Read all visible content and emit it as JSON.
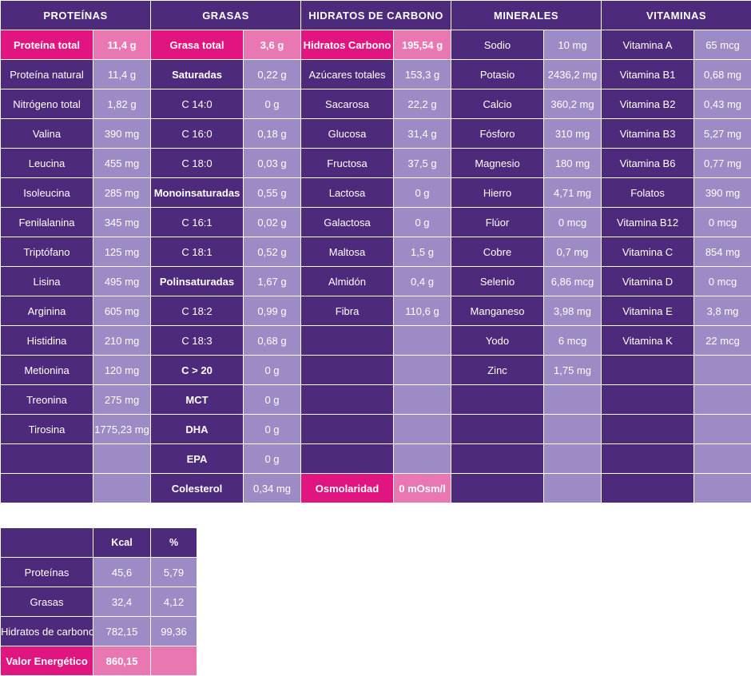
{
  "sections": {
    "proteinas": "PROTEÍNAS",
    "grasas": "GRASAS",
    "hidratos": "HIDRATOS DE CARBONO",
    "minerales": "MINERALES",
    "vitaminas": "VITAMINAS"
  },
  "rows": [
    {
      "p": {
        "name": "Proteína total",
        "value": "11,4 g",
        "hl": true
      },
      "g": {
        "name": "Grasa total",
        "value": "3,6 g",
        "hl": true
      },
      "h": {
        "name": "Hidratos Carbono",
        "value": "195,54 g",
        "hl": true
      },
      "m": {
        "name": "Sodio",
        "value": "10 mg"
      },
      "v": {
        "name": "Vitamina A",
        "value": "65 mcg"
      }
    },
    {
      "p": {
        "name": "Proteína natural",
        "value": "11,4 g"
      },
      "g": {
        "name": "Saturadas",
        "value": "0,22 g",
        "bold": true
      },
      "h": {
        "name": "Azúcares totales",
        "value": "153,3 g"
      },
      "m": {
        "name": "Potasio",
        "value": "2436,2 mg"
      },
      "v": {
        "name": "Vitamina B1",
        "value": "0,68 mg"
      }
    },
    {
      "p": {
        "name": "Nitrógeno total",
        "value": "1,82 g"
      },
      "g": {
        "name": "C 14:0",
        "value": "0 g"
      },
      "h": {
        "name": "Sacarosa",
        "value": "22,2 g"
      },
      "m": {
        "name": "Calcio",
        "value": "360,2 mg"
      },
      "v": {
        "name": "Vitamina B2",
        "value": "0,43 mg"
      }
    },
    {
      "p": {
        "name": "Valina",
        "value": "390 mg"
      },
      "g": {
        "name": "C 16:0",
        "value": "0,18 g"
      },
      "h": {
        "name": "Glucosa",
        "value": "31,4 g"
      },
      "m": {
        "name": "Fósforo",
        "value": "310 mg"
      },
      "v": {
        "name": "Vitamina B3",
        "value": "5,27 mg"
      }
    },
    {
      "p": {
        "name": "Leucina",
        "value": "455 mg"
      },
      "g": {
        "name": "C 18:0",
        "value": "0,03 g"
      },
      "h": {
        "name": "Fructosa",
        "value": "37,5 g"
      },
      "m": {
        "name": "Magnesio",
        "value": "180 mg"
      },
      "v": {
        "name": "Vitamina B6",
        "value": "0,77 mg"
      }
    },
    {
      "p": {
        "name": "Isoleucina",
        "value": "285 mg"
      },
      "g": {
        "name": "Monoinsaturadas",
        "value": "0,55 g",
        "bold": true
      },
      "h": {
        "name": "Lactosa",
        "value": "0 g"
      },
      "m": {
        "name": "Hierro",
        "value": "4,71 mg"
      },
      "v": {
        "name": "Folatos",
        "value": "390 mg"
      }
    },
    {
      "p": {
        "name": "Fenilalanina",
        "value": "345 mg"
      },
      "g": {
        "name": "C 16:1",
        "value": "0,02 g"
      },
      "h": {
        "name": "Galactosa",
        "value": "0 g"
      },
      "m": {
        "name": "Flúor",
        "value": "0 mcg"
      },
      "v": {
        "name": "Vitamina B12",
        "value": "0 mcg"
      }
    },
    {
      "p": {
        "name": "Triptófano",
        "value": "125 mg"
      },
      "g": {
        "name": "C 18:1",
        "value": "0,52 g"
      },
      "h": {
        "name": "Maltosa",
        "value": "1,5 g"
      },
      "m": {
        "name": "Cobre",
        "value": "0,7 mg"
      },
      "v": {
        "name": "Vitamina C",
        "value": "854 mg"
      }
    },
    {
      "p": {
        "name": "Lisina",
        "value": "495 mg"
      },
      "g": {
        "name": "Polinsaturadas",
        "value": "1,67 g",
        "bold": true
      },
      "h": {
        "name": "Almidón",
        "value": "0,4 g"
      },
      "m": {
        "name": "Selenio",
        "value": "6,86 mcg"
      },
      "v": {
        "name": "Vitamina D",
        "value": "0 mcg"
      }
    },
    {
      "p": {
        "name": "Arginina",
        "value": "605 mg"
      },
      "g": {
        "name": "C 18:2",
        "value": "0,99 g"
      },
      "h": {
        "name": "Fibra",
        "value": "110,6 g"
      },
      "m": {
        "name": "Manganeso",
        "value": "3,98 mg"
      },
      "v": {
        "name": "Vitamina E",
        "value": "3,8 mg"
      }
    },
    {
      "p": {
        "name": "Histidina",
        "value": "210 mg"
      },
      "g": {
        "name": "C 18:3",
        "value": "0,68 g"
      },
      "h": {
        "name": "",
        "value": ""
      },
      "m": {
        "name": "Yodo",
        "value": "6 mcg"
      },
      "v": {
        "name": "Vitamina K",
        "value": "22 mcg"
      }
    },
    {
      "p": {
        "name": "Metionina",
        "value": "120 mg"
      },
      "g": {
        "name": "C > 20",
        "value": "0 g",
        "bold": true
      },
      "h": {
        "name": "",
        "value": ""
      },
      "m": {
        "name": "Zinc",
        "value": "1,75 mg"
      },
      "v": {
        "name": "",
        "value": ""
      }
    },
    {
      "p": {
        "name": "Treonina",
        "value": "275 mg"
      },
      "g": {
        "name": "MCT",
        "value": "0 g",
        "bold": true
      },
      "h": {
        "name": "",
        "value": ""
      },
      "m": {
        "name": "",
        "value": ""
      },
      "v": {
        "name": "",
        "value": ""
      }
    },
    {
      "p": {
        "name": "Tirosina",
        "value": "1775,23 mg"
      },
      "g": {
        "name": "DHA",
        "value": "0 g",
        "bold": true
      },
      "h": {
        "name": "",
        "value": ""
      },
      "m": {
        "name": "",
        "value": ""
      },
      "v": {
        "name": "",
        "value": ""
      }
    },
    {
      "p": {
        "name": "",
        "value": ""
      },
      "g": {
        "name": "EPA",
        "value": "0 g",
        "bold": true
      },
      "h": {
        "name": "",
        "value": ""
      },
      "m": {
        "name": "",
        "value": ""
      },
      "v": {
        "name": "",
        "value": ""
      }
    },
    {
      "p": {
        "name": "",
        "value": ""
      },
      "g": {
        "name": "Colesterol",
        "value": "0,34 mg",
        "bold": true
      },
      "h": {
        "name": "Osmolaridad",
        "value": "0 mOsm/l",
        "hl": true
      },
      "m": {
        "name": "",
        "value": ""
      },
      "v": {
        "name": "",
        "value": ""
      }
    }
  ],
  "energy": {
    "headers": {
      "kcal": "Kcal",
      "percent": "%"
    },
    "rows": [
      {
        "name": "Proteínas",
        "kcal": "45,6",
        "percent": "5,79"
      },
      {
        "name": "Grasas",
        "kcal": "32,4",
        "percent": "4,12"
      },
      {
        "name": "Hidratos de carbono",
        "kcal": "782,15",
        "percent": "99,36"
      },
      {
        "name": "Valor Energético",
        "kcal": "860,15",
        "percent": "",
        "hl": true
      }
    ]
  },
  "colors": {
    "dark_purple": "#4d2a7b",
    "light_purple": "#9c8bc4",
    "magenta": "#e0157f",
    "pink": "#e877b2"
  }
}
